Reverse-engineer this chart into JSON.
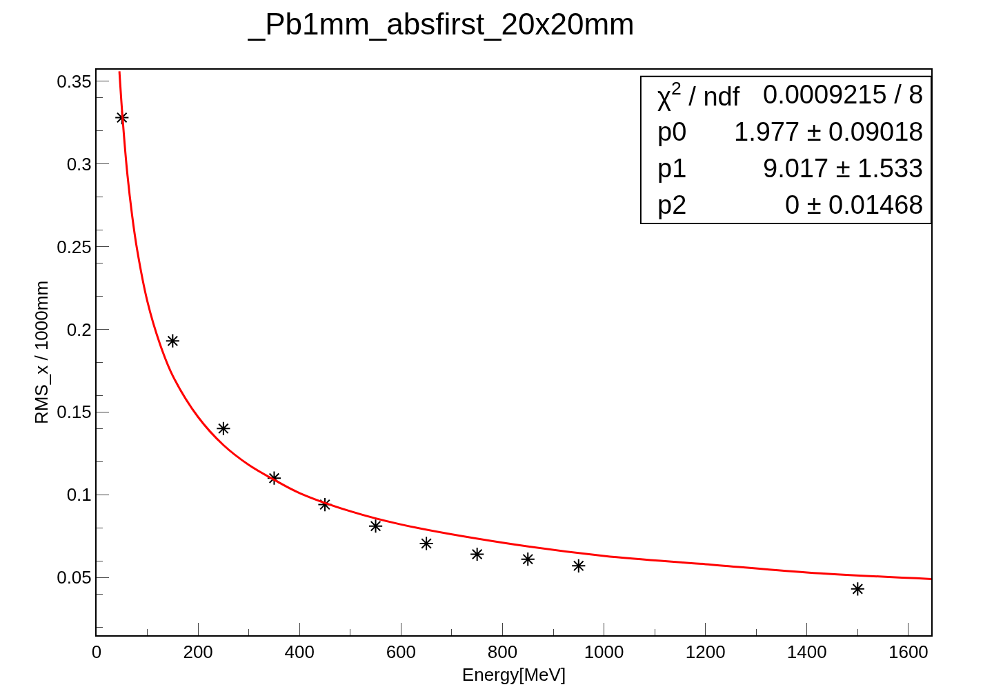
{
  "chart_data": {
    "type": "scatter",
    "title": "_Pb1mm_absfirst_20x20mm",
    "xlabel": "Energy[MeV]",
    "ylabel": "RMS_x / 1000mm",
    "xlim": [
      0,
      1645
    ],
    "xticks": [
      0,
      200,
      400,
      600,
      800,
      1000,
      1200,
      1400,
      1600
    ],
    "ylim": [
      0.015,
      0.357
    ],
    "yticks": [
      0.05,
      0.1,
      0.15,
      0.2,
      0.25,
      0.3,
      0.35
    ],
    "grid": false,
    "series": [
      {
        "marker": "cross",
        "color": "#000000",
        "x": [
          50,
          150,
          250,
          350,
          450,
          550,
          650,
          750,
          850,
          950,
          1500
        ],
        "values": [
          0.328,
          0.193,
          0.14,
          0.11,
          0.094,
          0.081,
          0.0705,
          0.064,
          0.061,
          0.057,
          0.043
        ]
      },
      {
        "type": "line",
        "marker": "none",
        "color": "#ff0000",
        "line_style": "solid",
        "x": [
          45,
          50,
          60,
          70,
          80,
          100,
          125,
          150,
          200,
          250,
          300,
          350,
          400,
          500,
          600,
          800,
          1000,
          1200,
          1400,
          1645
        ],
        "values": [
          0.356,
          0.333,
          0.296,
          0.269,
          0.248,
          0.217,
          0.191,
          0.172,
          0.147,
          0.13,
          0.118,
          0.109,
          0.101,
          0.09,
          0.082,
          0.071,
          0.063,
          0.058,
          0.053,
          0.049
        ]
      }
    ],
    "annotations": [
      "χ$^{2}$ / ndf",
      "0.0009215 / 8",
      "p0",
      "1.977 ± 0.09018",
      "p1",
      "9.017 ± 1.533",
      "p2",
      "0 ± 0.01468"
    ]
  }
}
